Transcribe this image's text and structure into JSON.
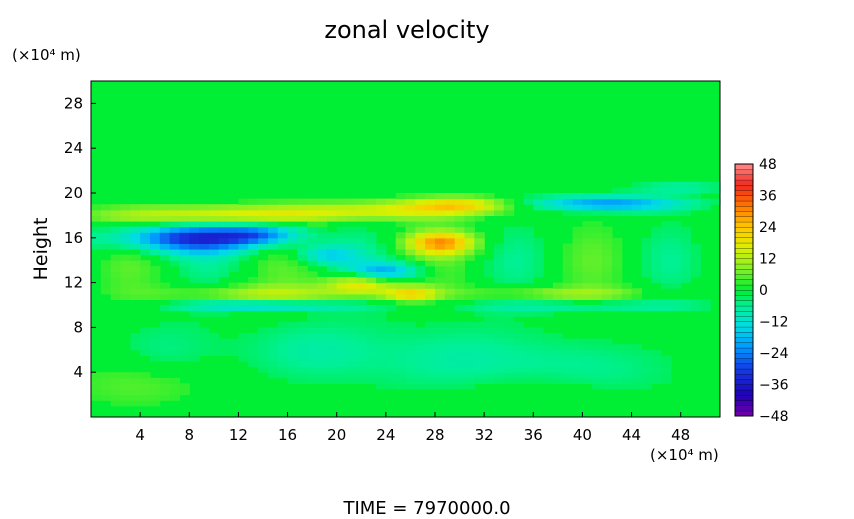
{
  "chart_data": {
    "type": "heatmap",
    "title": "zonal velocity",
    "ylabel": "Height",
    "y_unit": "(×10⁴ m)",
    "x_unit": "(×10⁴ m)",
    "x_ticks": [
      "4",
      "8",
      "12",
      "16",
      "20",
      "24",
      "28",
      "32",
      "36",
      "40",
      "44",
      "48"
    ],
    "y_ticks": [
      "4",
      "8",
      "12",
      "16",
      "20",
      "24",
      "28"
    ],
    "xlim": [
      0,
      51.2
    ],
    "ylim": [
      0,
      30
    ],
    "colorbar": {
      "ticks": [
        "48",
        "36",
        "24",
        "12",
        "0",
        "−12",
        "−24",
        "−36",
        "−48"
      ],
      "range": [
        -48,
        48
      ]
    },
    "footer": "TIME  =  7970000.0"
  }
}
